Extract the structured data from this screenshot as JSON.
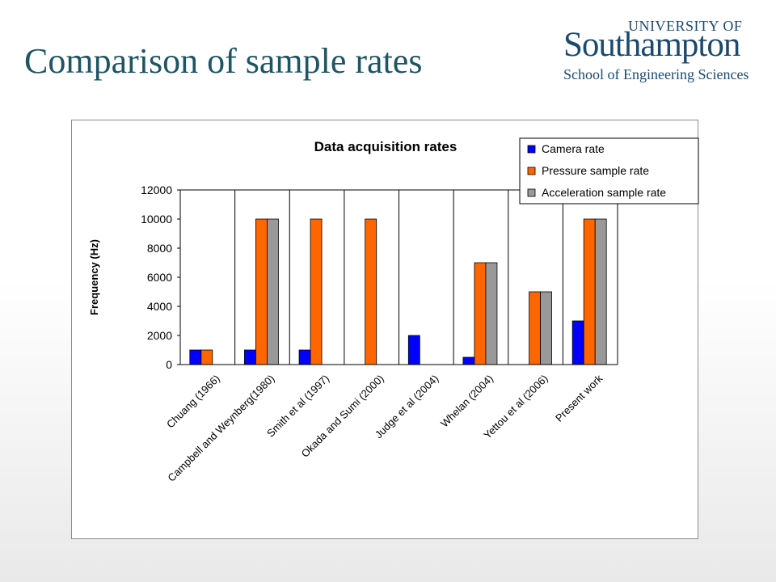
{
  "slide": {
    "title": "Comparison of sample rates"
  },
  "logo": {
    "line1": "UNIVERSITY OF",
    "line2": "Southampton",
    "line3": "School of Engineering Sciences"
  },
  "colors": {
    "title": "#1e5563",
    "logo": "#1b4a6e",
    "camera": "#0000ff",
    "pressure": "#ff6600",
    "acceleration": "#999999"
  },
  "chart_data": {
    "type": "bar",
    "title": "Data acquisition rates",
    "xlabel": "",
    "ylabel": "Frequency (Hz)",
    "ylim": [
      0,
      12000
    ],
    "yticks": [
      "0",
      "2000",
      "4000",
      "6000",
      "8000",
      "10000",
      "12000"
    ],
    "grid": "vertical category separators",
    "legend_position": "top-right",
    "categories": [
      "Chuang (1966)",
      "Campbell and Weynberg(1980)",
      "Smith et al (1997)",
      "Okada and Sumi (2000)",
      "Judge et al (2004)",
      "Whelan (2004)",
      "Yettou et al (2006)",
      "Present work"
    ],
    "series": [
      {
        "name": "Camera rate",
        "color": "#0000ff",
        "values": [
          1000,
          1000,
          1000,
          0,
          2000,
          500,
          0,
          3000
        ]
      },
      {
        "name": "Pressure sample rate",
        "color": "#ff6600",
        "values": [
          1000,
          10000,
          10000,
          10000,
          0,
          7000,
          5000,
          10000
        ]
      },
      {
        "name": "Acceleration sample rate",
        "color": "#999999",
        "values": [
          0,
          10000,
          0,
          0,
          0,
          7000,
          5000,
          10000
        ]
      }
    ]
  }
}
